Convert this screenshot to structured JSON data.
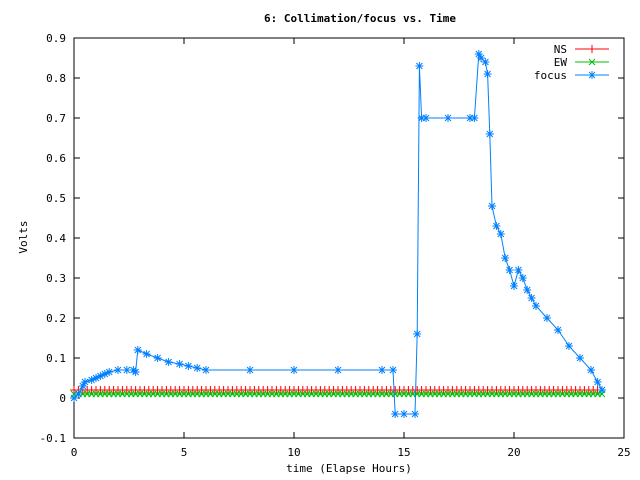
{
  "chart_data": {
    "type": "line",
    "title": "6: Collimation/focus vs. Time",
    "xlabel": "time (Elapse Hours)",
    "ylabel": "Volts",
    "xlim": [
      0,
      25
    ],
    "ylim": [
      -0.1,
      0.9
    ],
    "xticks": [
      "0",
      "5",
      "10",
      "15",
      "20",
      "25"
    ],
    "yticks": [
      "-0.1",
      "0",
      "0.1",
      "0.2",
      "0.3",
      "0.4",
      "0.5",
      "0.6",
      "0.7",
      "0.8",
      "0.9"
    ],
    "grid": false,
    "legend_position": "top-right",
    "series": [
      {
        "name": "NS",
        "color": "#ff0000",
        "marker": "plus",
        "x": [
          0,
          24
        ],
        "y": [
          0.02,
          0.02
        ]
      },
      {
        "name": "EW",
        "color": "#00c000",
        "marker": "cross",
        "x": [
          0,
          24
        ],
        "y": [
          0.01,
          0.01
        ]
      },
      {
        "name": "focus",
        "color": "#0080ff",
        "marker": "star",
        "x": [
          0.0,
          0.2,
          0.4,
          0.5,
          0.8,
          1.0,
          1.2,
          1.4,
          1.6,
          2.0,
          2.4,
          2.7,
          2.8,
          2.9,
          3.3,
          3.8,
          4.3,
          4.8,
          5.2,
          5.6,
          6.0,
          8.0,
          10.0,
          12.0,
          14.0,
          14.5,
          14.6,
          15.0,
          15.5,
          15.6,
          15.7,
          15.8,
          16.0,
          17.0,
          18.0,
          18.2,
          18.4,
          18.5,
          18.7,
          18.8,
          18.9,
          19.0,
          19.2,
          19.4,
          19.6,
          19.8,
          20.0,
          20.2,
          20.4,
          20.6,
          20.8,
          21.0,
          21.5,
          22.0,
          22.5,
          23.0,
          23.5,
          23.8,
          24.0
        ],
        "y": [
          0.0,
          0.01,
          0.03,
          0.04,
          0.045,
          0.05,
          0.055,
          0.06,
          0.065,
          0.07,
          0.07,
          0.07,
          0.065,
          0.12,
          0.11,
          0.1,
          0.09,
          0.085,
          0.08,
          0.075,
          0.07,
          0.07,
          0.07,
          0.07,
          0.07,
          0.07,
          -0.04,
          -0.04,
          -0.04,
          0.16,
          0.83,
          0.7,
          0.7,
          0.7,
          0.7,
          0.7,
          0.86,
          0.85,
          0.84,
          0.81,
          0.66,
          0.48,
          0.43,
          0.41,
          0.35,
          0.32,
          0.28,
          0.32,
          0.3,
          0.27,
          0.25,
          0.23,
          0.2,
          0.17,
          0.13,
          0.1,
          0.07,
          0.04,
          0.02
        ]
      }
    ]
  }
}
